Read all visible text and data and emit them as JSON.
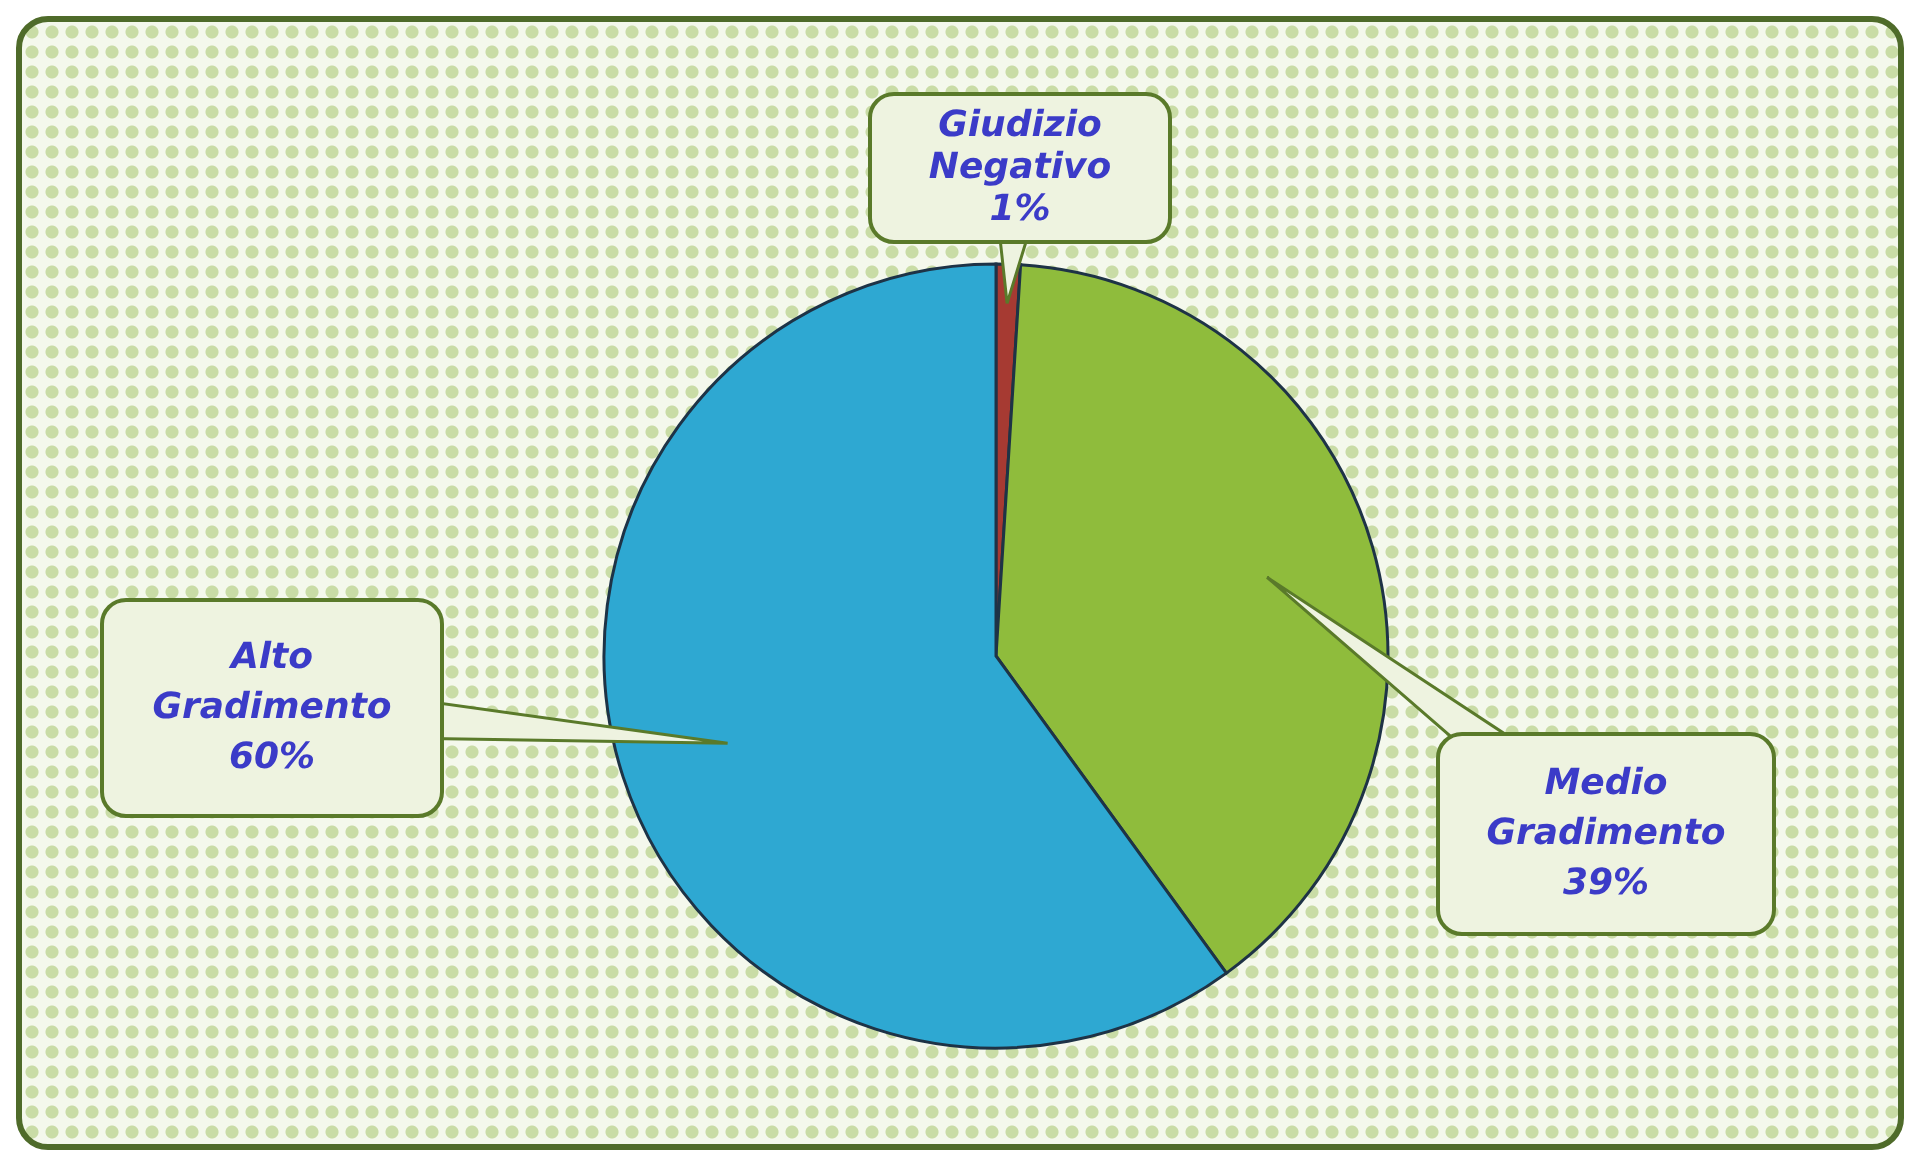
{
  "chart_data": {
    "type": "pie",
    "categories": [
      "Giudizio Negativo",
      "Medio Gradimento",
      "Alto Gradimento"
    ],
    "values": [
      1,
      39,
      60
    ],
    "value_labels": [
      "1%",
      "39%",
      "60%"
    ],
    "colors": [
      "#a63a32",
      "#8fbc3c",
      "#2ea8d2"
    ],
    "legend": false
  }
}
